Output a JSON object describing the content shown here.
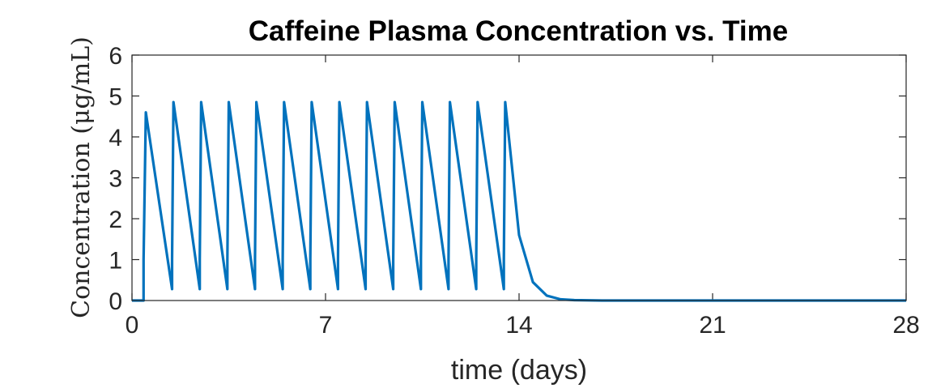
{
  "chart_data": {
    "type": "line",
    "title": "Caffeine Plasma Concentration vs. Time",
    "xlabel": "time (days)",
    "ylabel": "Concentration (μg/mL)",
    "xlim": [
      0,
      28
    ],
    "ylim": [
      0,
      6
    ],
    "xticks": [
      0,
      7,
      14,
      21,
      28
    ],
    "yticks": [
      0,
      1,
      2,
      3,
      4,
      5,
      6
    ],
    "grid": false,
    "color": "#0072BD",
    "series": [
      {
        "x": [
          0,
          0.42,
          0.42,
          0.5,
          1.45,
          1.45,
          1.5,
          2.45,
          2.45,
          2.5,
          3.45,
          3.45,
          3.5,
          4.45,
          4.45,
          4.5,
          5.45,
          5.45,
          5.5,
          6.45,
          6.45,
          6.5,
          7.45,
          7.45,
          7.5,
          8.45,
          8.45,
          8.5,
          9.45,
          9.45,
          9.5,
          10.45,
          10.45,
          10.5,
          11.45,
          11.45,
          11.5,
          12.45,
          12.45,
          12.5,
          13.45,
          13.45,
          13.5,
          14.0,
          14.5,
          15.0,
          15.5,
          16.0,
          17.0,
          28
        ],
        "y": [
          0,
          0,
          1.0,
          4.6,
          0.28,
          1.0,
          4.85,
          0.28,
          1.0,
          4.85,
          0.28,
          1.0,
          4.85,
          0.28,
          1.0,
          4.85,
          0.28,
          1.0,
          4.85,
          0.28,
          1.0,
          4.85,
          0.28,
          1.0,
          4.85,
          0.28,
          1.0,
          4.85,
          0.28,
          1.0,
          4.85,
          0.28,
          1.0,
          4.85,
          0.28,
          1.0,
          4.85,
          0.28,
          1.0,
          4.85,
          0.28,
          1.0,
          4.85,
          1.6,
          0.45,
          0.12,
          0.03,
          0.01,
          0.0,
          0.0
        ]
      }
    ]
  }
}
